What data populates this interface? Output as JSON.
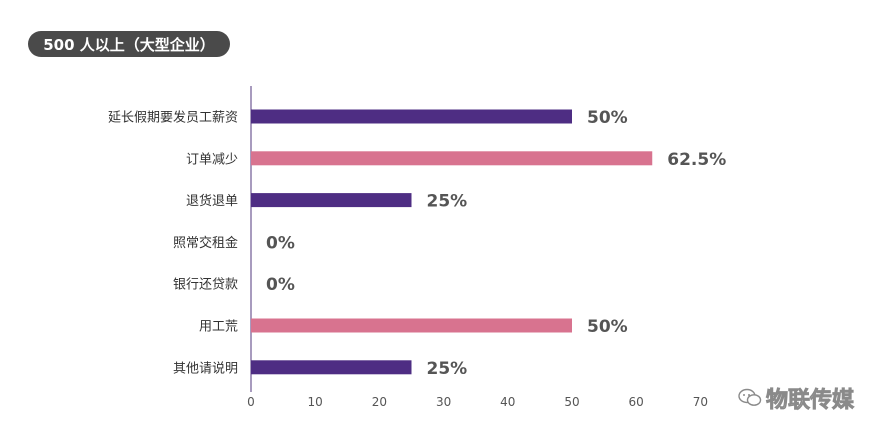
{
  "header": {
    "title": "500 人以上（大型企业）"
  },
  "chart_data": {
    "type": "bar",
    "orientation": "horizontal",
    "categories": [
      "延长假期要发员工薪资",
      "订单减少",
      "退货退单",
      "照常交租金",
      "银行还贷款",
      "用工荒",
      "其他请说明"
    ],
    "values": [
      50,
      62.5,
      25,
      0,
      0,
      50,
      25
    ],
    "data_labels": [
      "50%",
      "62.5%",
      "25%",
      "0%",
      "0%",
      "50%",
      "25%"
    ],
    "bar_colors": [
      "#4e2d83",
      "#d8738f",
      "#4e2d83",
      "#4e2d83",
      "#4e2d83",
      "#d8738f",
      "#4e2d83"
    ],
    "x_ticks": [
      "0",
      "10",
      "20",
      "30",
      "40",
      "50",
      "60",
      "70"
    ],
    "xlim": [
      0,
      80
    ],
    "grid": false
  },
  "watermark": {
    "text": "物联传媒"
  }
}
